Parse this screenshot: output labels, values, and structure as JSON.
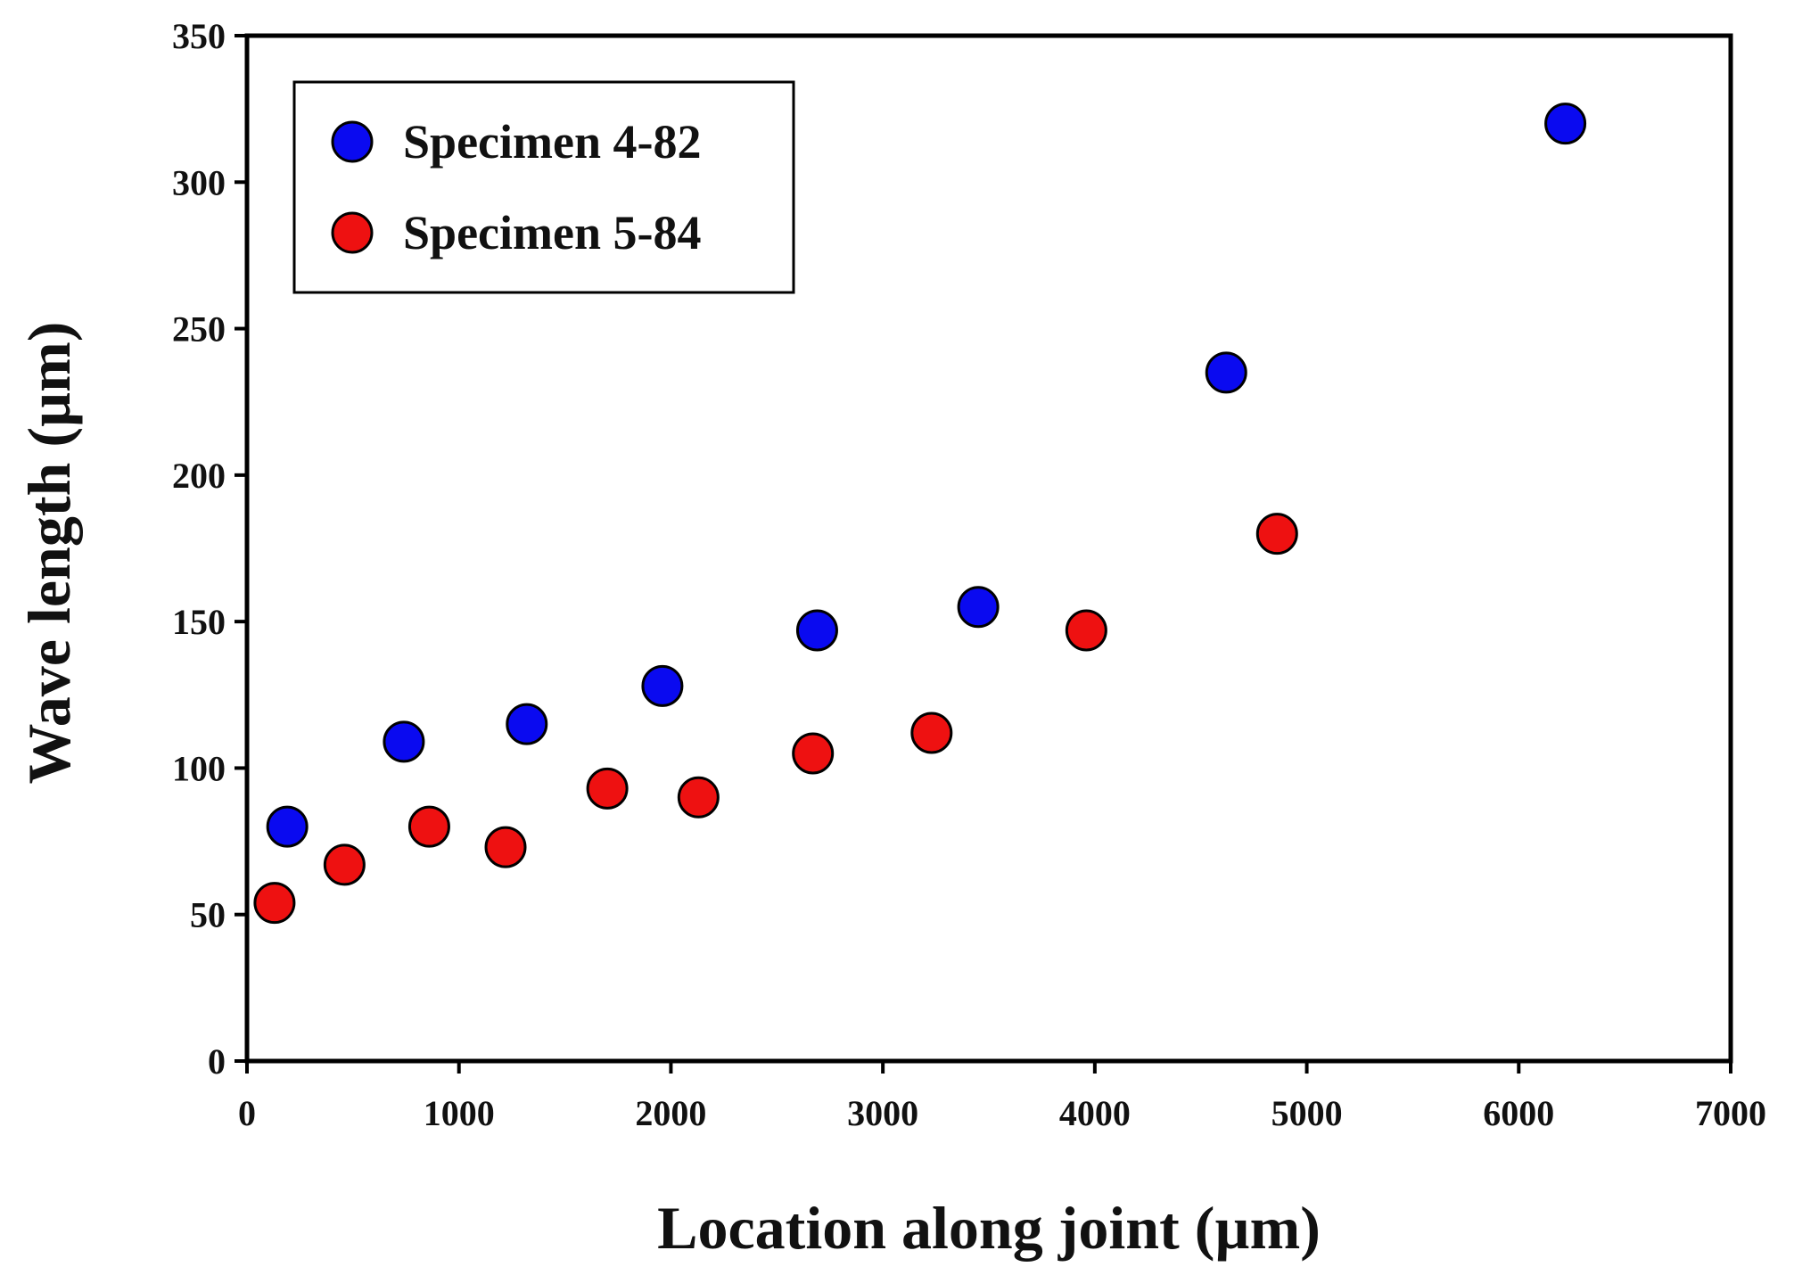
{
  "chart_data": {
    "type": "scatter",
    "title": "",
    "xlabel": "Location along joint (µm)",
    "ylabel": "Wave length (µm)",
    "xlim": [
      0,
      7000
    ],
    "ylim": [
      0,
      350
    ],
    "xticks": [
      0,
      1000,
      2000,
      3000,
      4000,
      5000,
      6000,
      7000
    ],
    "yticks": [
      0,
      50,
      100,
      150,
      200,
      250,
      300,
      350
    ],
    "grid": false,
    "legend_position": "top-left",
    "series": [
      {
        "name": "Specimen 4-82",
        "color": "#0a0af0",
        "x": [
          190,
          740,
          1320,
          1960,
          2690,
          3450,
          4620,
          6220
        ],
        "y": [
          80,
          109,
          115,
          128,
          147,
          155,
          235,
          320
        ]
      },
      {
        "name": "Specimen 5-84",
        "color": "#ee1111",
        "x": [
          130,
          460,
          860,
          1220,
          1700,
          2130,
          2670,
          3230,
          3960,
          4860
        ],
        "y": [
          54,
          67,
          80,
          73,
          93,
          90,
          105,
          112,
          147,
          180
        ]
      }
    ]
  }
}
